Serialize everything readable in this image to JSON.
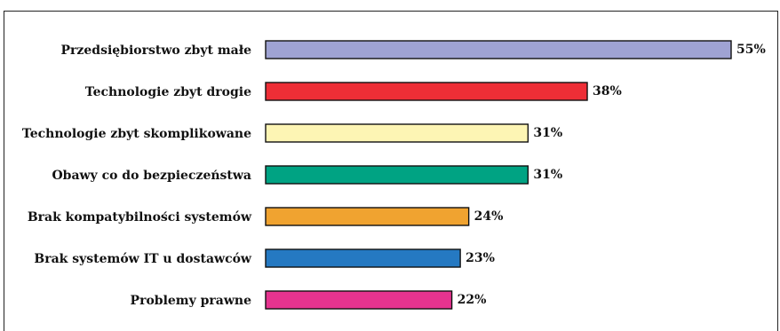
{
  "chart_data": {
    "type": "bar",
    "orientation": "horizontal",
    "title": "",
    "xlabel": "",
    "ylabel": "",
    "unit": "%",
    "xlim": [
      0,
      55
    ],
    "grid": false,
    "legend": "none",
    "categories": [
      "Przedsiębiorstwo zbyt małe",
      "Technologie zbyt drogie",
      "Technologie zbyt skomplikowane",
      "Obawy co do bezpieczeństwa",
      "Brak kompatybilności systemów",
      "Brak systemów IT u dostawców",
      "Problemy prawne"
    ],
    "values": [
      55,
      38,
      31,
      31,
      24,
      23,
      22
    ],
    "value_labels": [
      "55%",
      "38%",
      "31%",
      "31%",
      "24%",
      "23%",
      "22%"
    ],
    "colors": [
      "#9fa3d3",
      "#ee2e36",
      "#fdf5b4",
      "#00a383",
      "#f0a330",
      "#2579c2",
      "#e6338f"
    ]
  }
}
